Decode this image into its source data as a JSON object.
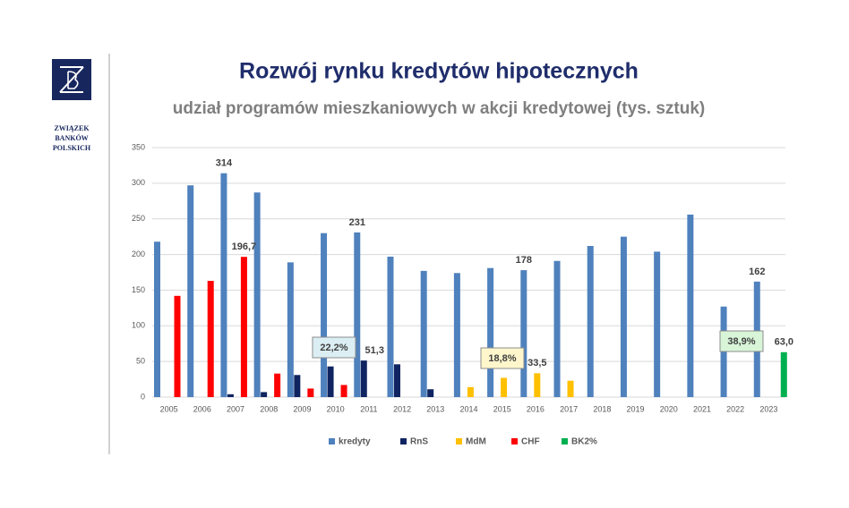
{
  "logo": {
    "lines": [
      "ZWIĄZEK",
      "BANKÓW",
      "POLSKICH"
    ]
  },
  "chart_data": {
    "type": "bar",
    "title": "Rozwój rynku kredytów hipotecznych",
    "subtitle": "udział programów mieszkaniowych w akcji kredytowej (tys. sztuk)",
    "categories": [
      "2005",
      "2006",
      "2007",
      "2008",
      "2009",
      "2010",
      "2011",
      "2012",
      "2013",
      "2014",
      "2015",
      "2016",
      "2017",
      "2018",
      "2019",
      "2020",
      "2021",
      "2022",
      "2023"
    ],
    "series": [
      {
        "name": "kredyty",
        "color": "#4f81bd",
        "values": [
          218,
          297,
          314,
          287,
          189,
          230,
          231,
          197,
          177,
          174,
          181,
          178,
          191,
          212,
          225,
          204,
          256,
          127,
          162
        ],
        "value_labels": [
          null,
          null,
          "314",
          null,
          null,
          null,
          "231",
          null,
          null,
          null,
          null,
          "178",
          null,
          null,
          null,
          null,
          null,
          null,
          "162"
        ]
      },
      {
        "name": "RnS",
        "color": "#0f2460",
        "values": [
          null,
          null,
          4,
          7,
          31,
          43,
          51.3,
          46,
          11,
          null,
          null,
          null,
          null,
          null,
          null,
          null,
          null,
          null,
          null
        ],
        "value_labels": [
          null,
          null,
          null,
          null,
          null,
          null,
          "51,3",
          null,
          null,
          null,
          null,
          null,
          null,
          null,
          null,
          null,
          null,
          null,
          null
        ]
      },
      {
        "name": "MdM",
        "color": "#ffc000",
        "values": [
          null,
          null,
          null,
          null,
          null,
          null,
          null,
          null,
          null,
          14,
          27,
          33.5,
          23,
          null,
          null,
          null,
          null,
          null,
          null
        ],
        "value_labels": [
          null,
          null,
          null,
          null,
          null,
          null,
          null,
          null,
          null,
          null,
          null,
          "33,5",
          null,
          null,
          null,
          null,
          null,
          null,
          null
        ]
      },
      {
        "name": "CHF",
        "color": "#ff0000",
        "values": [
          142,
          163,
          196.7,
          33,
          12,
          17,
          null,
          null,
          null,
          null,
          null,
          null,
          null,
          null,
          null,
          null,
          null,
          null,
          null
        ],
        "value_labels": [
          null,
          null,
          "196,7",
          null,
          null,
          null,
          null,
          null,
          null,
          null,
          null,
          null,
          null,
          null,
          null,
          null,
          null,
          null,
          null
        ]
      },
      {
        "name": "BK2%",
        "color": "#00b050",
        "values": [
          null,
          null,
          null,
          null,
          null,
          null,
          null,
          null,
          null,
          null,
          null,
          null,
          null,
          null,
          null,
          null,
          null,
          null,
          63.0
        ],
        "value_labels": [
          null,
          null,
          null,
          null,
          null,
          null,
          null,
          null,
          null,
          null,
          null,
          null,
          null,
          null,
          null,
          null,
          null,
          null,
          "63,0"
        ]
      }
    ],
    "annotations": [
      "22,2%",
      "18,8%",
      "38,9%"
    ],
    "ylim": [
      0,
      350
    ],
    "yticks": [
      0,
      50,
      100,
      150,
      200,
      250,
      300,
      350
    ],
    "grid": true,
    "legend": "bottom"
  }
}
